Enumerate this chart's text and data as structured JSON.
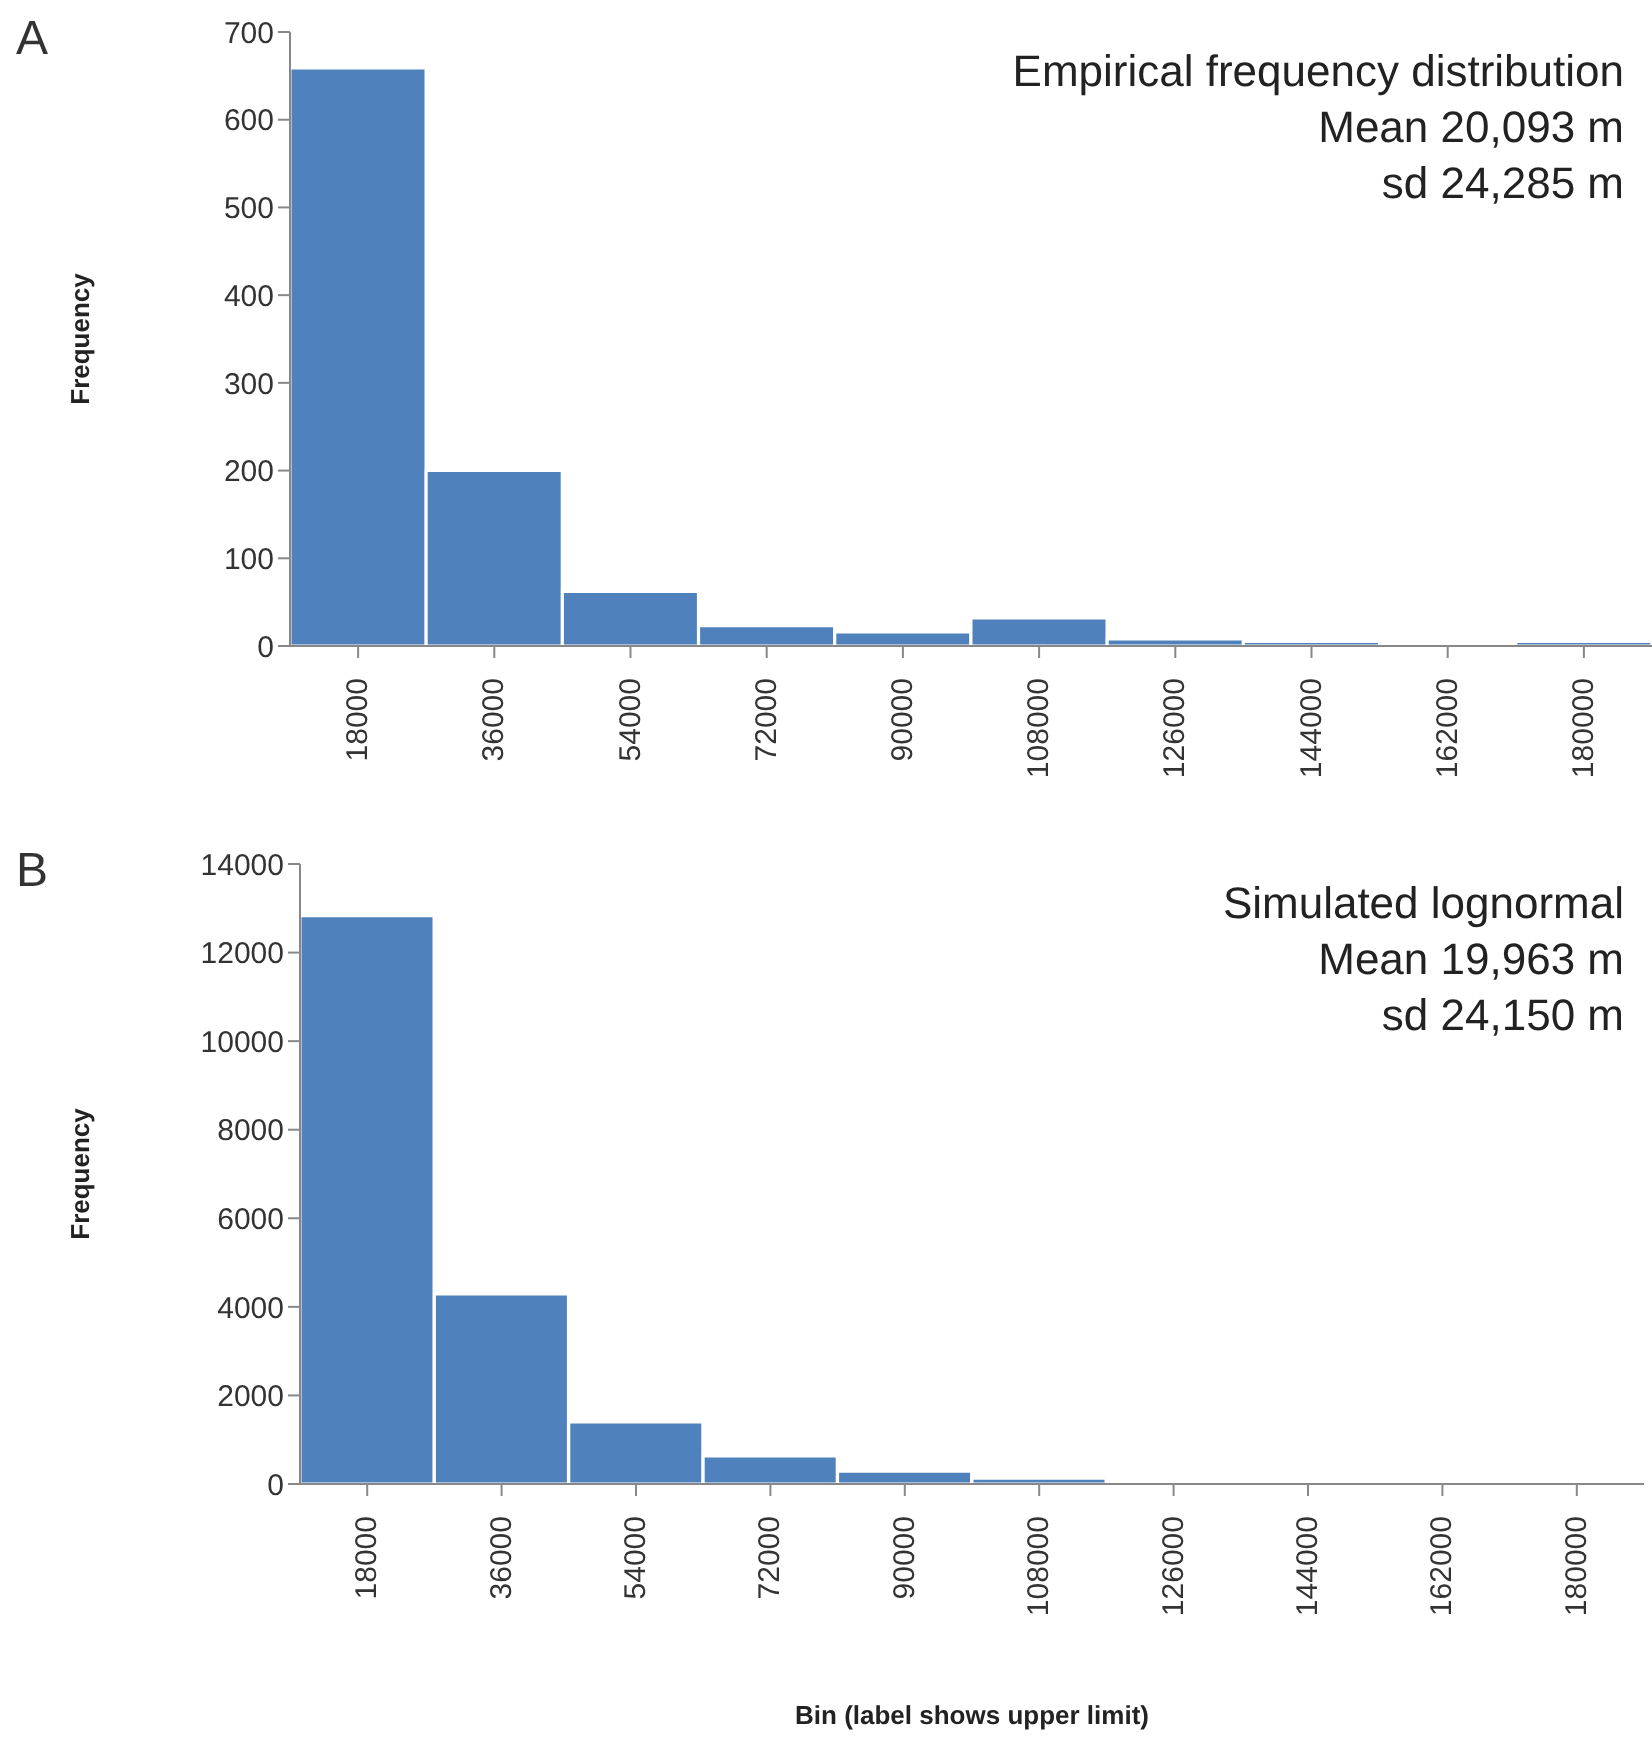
{
  "chart_data": [
    {
      "type": "bar",
      "title": "A",
      "ylabel": "Frequency",
      "categories": [
        "18000",
        "36000",
        "54000",
        "72000",
        "90000",
        "108000",
        "126000",
        "144000",
        "162000",
        "180000"
      ],
      "values": [
        659,
        200,
        62,
        23,
        16,
        32,
        8,
        5,
        1,
        5
      ],
      "color": "#4f81bd",
      "ylim": [
        0,
        700
      ],
      "yticks": [
        0,
        100,
        200,
        300,
        400,
        500,
        600,
        700
      ],
      "grid": false,
      "annotations": [
        "Empirical frequency distribution",
        "Mean 20,093 m",
        "sd 24,285 m"
      ]
    },
    {
      "type": "bar",
      "title": "B",
      "ylabel": "Frequency",
      "xlabel": "Bin (label shows upper limit)",
      "categories": [
        "18000",
        "36000",
        "54000",
        "72000",
        "90000",
        "108000",
        "126000",
        "144000",
        "162000",
        "180000"
      ],
      "values": [
        12830,
        4290,
        1400,
        630,
        290,
        130,
        null,
        null,
        null,
        null
      ],
      "color": "#4f81bd",
      "ylim": [
        0,
        14000
      ],
      "yticks": [
        0,
        2000,
        4000,
        6000,
        8000,
        10000,
        12000,
        14000
      ],
      "grid": false,
      "annotations": [
        "Simulated lognormal",
        "Mean 19,963 m",
        "sd 24,150 m"
      ]
    }
  ]
}
